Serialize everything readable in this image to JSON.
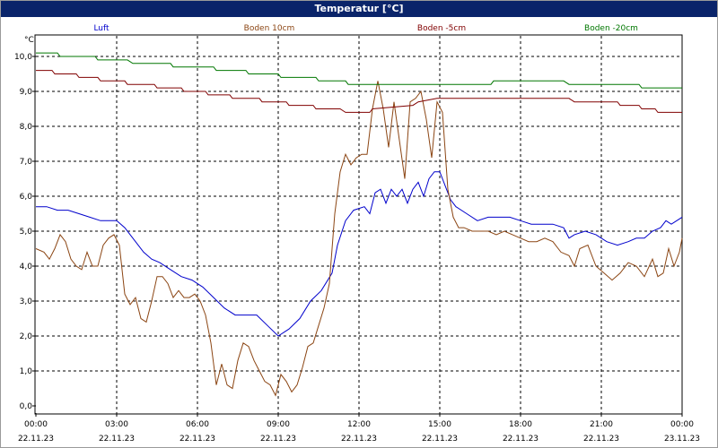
{
  "window": {
    "title": "Temperatur [°C]"
  },
  "chart_data": {
    "type": "line",
    "title": "Temperatur [°C]",
    "ylabel": "°C",
    "xlabel": "",
    "ylim": [
      0,
      10.5
    ],
    "xlim_hours": [
      0,
      24
    ],
    "yticks": [
      "0,0",
      "1,0",
      "2,0",
      "3,0",
      "4,0",
      "5,0",
      "6,0",
      "7,0",
      "8,0",
      "9,0",
      "10,0"
    ],
    "xticks": [
      {
        "time": "00:00",
        "date": "22.11.23"
      },
      {
        "time": "03:00",
        "date": "22.11.23"
      },
      {
        "time": "06:00",
        "date": "22.11.23"
      },
      {
        "time": "09:00",
        "date": "22.11.23"
      },
      {
        "time": "12:00",
        "date": "22.11.23"
      },
      {
        "time": "15:00",
        "date": "22.11.23"
      },
      {
        "time": "18:00",
        "date": "22.11.23"
      },
      {
        "time": "21:00",
        "date": "22.11.23"
      },
      {
        "time": "00:00",
        "date": "23.11.23"
      }
    ],
    "grid": true,
    "legend_position": "top",
    "series": [
      {
        "name": "Luft",
        "color": "#0000cc",
        "points": [
          [
            0,
            5.7
          ],
          [
            0.4,
            5.7
          ],
          [
            0.8,
            5.6
          ],
          [
            1.2,
            5.6
          ],
          [
            1.6,
            5.5
          ],
          [
            2,
            5.4
          ],
          [
            2.4,
            5.3
          ],
          [
            2.8,
            5.3
          ],
          [
            3,
            5.3
          ],
          [
            3.3,
            5.1
          ],
          [
            3.6,
            4.8
          ],
          [
            4,
            4.4
          ],
          [
            4.3,
            4.2
          ],
          [
            4.6,
            4.1
          ],
          [
            5,
            3.9
          ],
          [
            5.4,
            3.7
          ],
          [
            5.8,
            3.6
          ],
          [
            6.2,
            3.4
          ],
          [
            6.6,
            3.1
          ],
          [
            7,
            2.8
          ],
          [
            7.4,
            2.6
          ],
          [
            7.8,
            2.6
          ],
          [
            8.2,
            2.6
          ],
          [
            8.6,
            2.3
          ],
          [
            9,
            2.0
          ],
          [
            9.4,
            2.2
          ],
          [
            9.8,
            2.5
          ],
          [
            10.2,
            3.0
          ],
          [
            10.6,
            3.3
          ],
          [
            11,
            3.8
          ],
          [
            11.2,
            4.6
          ],
          [
            11.5,
            5.3
          ],
          [
            11.8,
            5.6
          ],
          [
            12.2,
            5.7
          ],
          [
            12.4,
            5.5
          ],
          [
            12.6,
            6.1
          ],
          [
            12.8,
            6.2
          ],
          [
            13,
            5.8
          ],
          [
            13.2,
            6.2
          ],
          [
            13.4,
            6.0
          ],
          [
            13.6,
            6.2
          ],
          [
            13.8,
            5.8
          ],
          [
            14,
            6.2
          ],
          [
            14.2,
            6.4
          ],
          [
            14.4,
            6.0
          ],
          [
            14.6,
            6.5
          ],
          [
            14.8,
            6.7
          ],
          [
            15,
            6.7
          ],
          [
            15.2,
            6.3
          ],
          [
            15.4,
            5.9
          ],
          [
            15.6,
            5.7
          ],
          [
            16,
            5.5
          ],
          [
            16.4,
            5.3
          ],
          [
            16.8,
            5.4
          ],
          [
            17.2,
            5.4
          ],
          [
            17.6,
            5.4
          ],
          [
            18,
            5.3
          ],
          [
            18.4,
            5.2
          ],
          [
            18.8,
            5.2
          ],
          [
            19.2,
            5.2
          ],
          [
            19.6,
            5.1
          ],
          [
            19.8,
            4.8
          ],
          [
            20,
            4.9
          ],
          [
            20.4,
            5.0
          ],
          [
            20.8,
            4.9
          ],
          [
            21.2,
            4.7
          ],
          [
            21.6,
            4.6
          ],
          [
            22,
            4.7
          ],
          [
            22.3,
            4.8
          ],
          [
            22.6,
            4.8
          ],
          [
            22.9,
            5.0
          ],
          [
            23.2,
            5.1
          ],
          [
            23.4,
            5.3
          ],
          [
            23.6,
            5.2
          ],
          [
            23.8,
            5.3
          ],
          [
            24,
            5.4
          ]
        ]
      },
      {
        "name": "Boden 10cm",
        "color": "#8b4513",
        "points": [
          [
            0,
            4.5
          ],
          [
            0.3,
            4.4
          ],
          [
            0.5,
            4.2
          ],
          [
            0.7,
            4.5
          ],
          [
            0.9,
            4.9
          ],
          [
            1.1,
            4.7
          ],
          [
            1.3,
            4.2
          ],
          [
            1.5,
            4.0
          ],
          [
            1.7,
            3.9
          ],
          [
            1.9,
            4.4
          ],
          [
            2.1,
            4.0
          ],
          [
            2.3,
            4.0
          ],
          [
            2.5,
            4.6
          ],
          [
            2.7,
            4.8
          ],
          [
            2.9,
            4.9
          ],
          [
            3.1,
            4.6
          ],
          [
            3.3,
            3.2
          ],
          [
            3.5,
            2.9
          ],
          [
            3.7,
            3.1
          ],
          [
            3.9,
            2.5
          ],
          [
            4.1,
            2.4
          ],
          [
            4.3,
            3.0
          ],
          [
            4.5,
            3.7
          ],
          [
            4.7,
            3.7
          ],
          [
            4.9,
            3.5
          ],
          [
            5.1,
            3.1
          ],
          [
            5.3,
            3.3
          ],
          [
            5.5,
            3.1
          ],
          [
            5.7,
            3.1
          ],
          [
            5.9,
            3.2
          ],
          [
            6.1,
            3.0
          ],
          [
            6.3,
            2.6
          ],
          [
            6.5,
            1.8
          ],
          [
            6.7,
            0.6
          ],
          [
            6.9,
            1.2
          ],
          [
            7.1,
            0.6
          ],
          [
            7.3,
            0.5
          ],
          [
            7.5,
            1.3
          ],
          [
            7.7,
            1.8
          ],
          [
            7.9,
            1.7
          ],
          [
            8.1,
            1.3
          ],
          [
            8.3,
            1.0
          ],
          [
            8.5,
            0.7
          ],
          [
            8.7,
            0.6
          ],
          [
            8.9,
            0.3
          ],
          [
            9.1,
            0.9
          ],
          [
            9.3,
            0.7
          ],
          [
            9.5,
            0.4
          ],
          [
            9.7,
            0.6
          ],
          [
            9.9,
            1.1
          ],
          [
            10.1,
            1.7
          ],
          [
            10.3,
            1.8
          ],
          [
            10.5,
            2.3
          ],
          [
            10.7,
            2.8
          ],
          [
            10.9,
            3.5
          ],
          [
            11.1,
            5.5
          ],
          [
            11.3,
            6.7
          ],
          [
            11.5,
            7.2
          ],
          [
            11.7,
            6.9
          ],
          [
            11.9,
            7.1
          ],
          [
            12.1,
            7.2
          ],
          [
            12.3,
            7.2
          ],
          [
            12.5,
            8.5
          ],
          [
            12.7,
            9.3
          ],
          [
            12.9,
            8.5
          ],
          [
            13.1,
            7.4
          ],
          [
            13.3,
            8.7
          ],
          [
            13.5,
            7.6
          ],
          [
            13.7,
            6.5
          ],
          [
            13.9,
            8.7
          ],
          [
            14.1,
            8.8
          ],
          [
            14.3,
            9.0
          ],
          [
            14.5,
            8.2
          ],
          [
            14.7,
            7.1
          ],
          [
            14.9,
            8.7
          ],
          [
            15.1,
            8.4
          ],
          [
            15.3,
            6.2
          ],
          [
            15.5,
            5.4
          ],
          [
            15.7,
            5.1
          ],
          [
            15.9,
            5.1
          ],
          [
            16.2,
            5.0
          ],
          [
            16.5,
            5.0
          ],
          [
            16.8,
            5.0
          ],
          [
            17.1,
            4.9
          ],
          [
            17.4,
            5.0
          ],
          [
            17.7,
            4.9
          ],
          [
            18,
            4.8
          ],
          [
            18.3,
            4.7
          ],
          [
            18.6,
            4.7
          ],
          [
            18.9,
            4.8
          ],
          [
            19.2,
            4.7
          ],
          [
            19.5,
            4.4
          ],
          [
            19.8,
            4.3
          ],
          [
            20,
            4.0
          ],
          [
            20.2,
            4.5
          ],
          [
            20.5,
            4.6
          ],
          [
            20.8,
            4.0
          ],
          [
            21.1,
            3.8
          ],
          [
            21.4,
            3.6
          ],
          [
            21.7,
            3.8
          ],
          [
            22,
            4.1
          ],
          [
            22.3,
            4.0
          ],
          [
            22.6,
            3.7
          ],
          [
            22.9,
            4.2
          ],
          [
            23.1,
            3.7
          ],
          [
            23.3,
            3.8
          ],
          [
            23.5,
            4.5
          ],
          [
            23.7,
            4.0
          ],
          [
            23.9,
            4.4
          ],
          [
            24,
            4.8
          ]
        ]
      },
      {
        "name": "Boden -5cm",
        "color": "#800000",
        "points": [
          [
            0,
            9.6
          ],
          [
            0.6,
            9.6
          ],
          [
            0.7,
            9.5
          ],
          [
            1.5,
            9.5
          ],
          [
            1.6,
            9.4
          ],
          [
            2.3,
            9.4
          ],
          [
            2.4,
            9.3
          ],
          [
            3.3,
            9.3
          ],
          [
            3.4,
            9.2
          ],
          [
            4.4,
            9.2
          ],
          [
            4.5,
            9.1
          ],
          [
            5.4,
            9.1
          ],
          [
            5.5,
            9.0
          ],
          [
            6.3,
            9.0
          ],
          [
            6.4,
            8.9
          ],
          [
            7.2,
            8.9
          ],
          [
            7.3,
            8.8
          ],
          [
            8.3,
            8.8
          ],
          [
            8.4,
            8.7
          ],
          [
            9.3,
            8.7
          ],
          [
            9.4,
            8.6
          ],
          [
            10.3,
            8.6
          ],
          [
            10.4,
            8.5
          ],
          [
            11.3,
            8.5
          ],
          [
            11.5,
            8.4
          ],
          [
            12.4,
            8.4
          ],
          [
            12.5,
            8.5
          ],
          [
            14.0,
            8.6
          ],
          [
            14.2,
            8.7
          ],
          [
            14.9,
            8.8
          ],
          [
            15.0,
            8.8
          ],
          [
            19.8,
            8.8
          ],
          [
            20.0,
            8.7
          ],
          [
            21.6,
            8.7
          ],
          [
            21.7,
            8.6
          ],
          [
            22.4,
            8.6
          ],
          [
            22.5,
            8.5
          ],
          [
            23.0,
            8.5
          ],
          [
            23.1,
            8.4
          ],
          [
            24,
            8.4
          ]
        ]
      },
      {
        "name": "Boden -20cm",
        "color": "#007700",
        "points": [
          [
            0,
            10.1
          ],
          [
            0.8,
            10.1
          ],
          [
            0.9,
            10.0
          ],
          [
            2.2,
            10.0
          ],
          [
            2.3,
            9.9
          ],
          [
            3.4,
            9.9
          ],
          [
            3.6,
            9.8
          ],
          [
            5.0,
            9.8
          ],
          [
            5.1,
            9.7
          ],
          [
            6.6,
            9.7
          ],
          [
            6.7,
            9.6
          ],
          [
            7.8,
            9.6
          ],
          [
            7.9,
            9.5
          ],
          [
            9.0,
            9.5
          ],
          [
            9.1,
            9.4
          ],
          [
            10.4,
            9.4
          ],
          [
            10.5,
            9.3
          ],
          [
            11.5,
            9.3
          ],
          [
            11.6,
            9.2
          ],
          [
            16.9,
            9.2
          ],
          [
            17.0,
            9.3
          ],
          [
            19.6,
            9.3
          ],
          [
            19.8,
            9.2
          ],
          [
            22.4,
            9.2
          ],
          [
            22.5,
            9.1
          ],
          [
            24,
            9.1
          ]
        ]
      }
    ]
  }
}
